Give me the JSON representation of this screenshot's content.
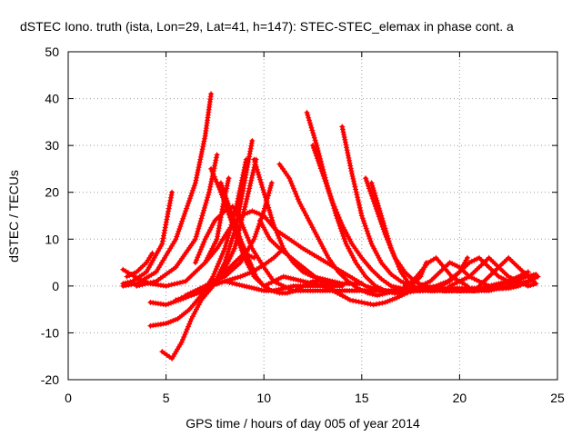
{
  "chart_data": {
    "type": "scatter",
    "title": "dSTEC Iono. truth (ista, Lon=29, Lat=41, h=147): STEC-STEC_elemax in phase cont. a",
    "xlabel": "GPS time / hours of day 005 of year 2014",
    "ylabel": "dSTEC  / TECUs",
    "xlim": [
      0,
      25
    ],
    "ylim": [
      -20,
      50
    ],
    "xticks": [
      0,
      5,
      10,
      15,
      20,
      25
    ],
    "yticks": [
      -20,
      -10,
      0,
      10,
      20,
      30,
      40,
      50
    ],
    "xtick_labels": [
      "0",
      "5",
      "10",
      "15",
      "20",
      "25"
    ],
    "ytick_labels": [
      "-20",
      "-10",
      "0",
      "10",
      "20",
      "30",
      "40",
      "50"
    ],
    "grid": true,
    "marker": "plus",
    "color": "#ff0000",
    "series": [
      {
        "x": [
          2.8,
          3.5,
          4.5,
          5.5,
          6.5,
          7.0,
          7.3
        ],
        "y": [
          0,
          0.5,
          3,
          10,
          22,
          32,
          41
        ]
      },
      {
        "x": [
          2.8,
          3.3,
          4.0,
          4.8,
          5.3
        ],
        "y": [
          0.5,
          1,
          3,
          9,
          20
        ]
      },
      {
        "x": [
          2.8,
          3.2,
          3.6,
          4.2,
          5.0,
          6.0,
          7.0,
          7.6,
          7.9,
          8.2
        ],
        "y": [
          3.5,
          2.5,
          1.5,
          0.5,
          0,
          1,
          5,
          10,
          17,
          23
        ]
      },
      {
        "x": [
          3.0,
          3.5,
          4.0,
          4.3
        ],
        "y": [
          2,
          3,
          5,
          7
        ]
      },
      {
        "x": [
          3.5,
          4.5,
          5.5,
          6.5,
          7.2,
          7.6
        ],
        "y": [
          0,
          1,
          4,
          10,
          20,
          28
        ]
      },
      {
        "x": [
          4.2,
          5.0,
          6.0,
          7.0,
          7.8,
          8.5,
          9.0,
          9.5
        ],
        "y": [
          -3.5,
          -4,
          -2.5,
          0,
          2,
          5,
          7,
          6
        ]
      },
      {
        "x": [
          4.2,
          5.0,
          5.6,
          6.2,
          6.8,
          7.4,
          8.0,
          8.6,
          9.1
        ],
        "y": [
          -8.5,
          -8,
          -7,
          -5,
          -2,
          2,
          8,
          17,
          27
        ]
      },
      {
        "x": [
          4.8,
          5.3,
          5.8,
          6.3,
          6.8,
          7.4,
          8.0,
          8.6,
          9.0,
          9.4
        ],
        "y": [
          -14,
          -15.5,
          -12,
          -7,
          -3,
          0,
          5,
          13,
          22,
          31
        ]
      },
      {
        "x": [
          5.5,
          6.3,
          7.0,
          7.8,
          8.5,
          9.1,
          9.6
        ],
        "y": [
          -3,
          -2,
          -1,
          2,
          8,
          18,
          27
        ]
      },
      {
        "x": [
          6.0,
          7.0,
          8.0,
          8.8,
          9.5,
          10.0,
          10.4
        ],
        "y": [
          -2,
          0,
          2,
          5,
          10,
          16,
          22
        ]
      },
      {
        "x": [
          5.8,
          6.5,
          7.3,
          8.0,
          8.8,
          9.4,
          10.0,
          10.5,
          11.0
        ],
        "y": [
          -2.5,
          -1.5,
          0,
          1,
          2,
          3,
          4.5,
          6,
          8
        ]
      },
      {
        "x": [
          6.5,
          7.0,
          7.5,
          8.0,
          8.4,
          8.7,
          9.0,
          9.4,
          10.0,
          10.5,
          11.0,
          11.5,
          12.0,
          12.5,
          13.0,
          13.5,
          14.0,
          14.5,
          15.0,
          15.5,
          16.0,
          16.5,
          17.0,
          17.5,
          18.0,
          18.5,
          19.0,
          19.5,
          20.0,
          20.5
        ],
        "y": [
          5,
          10,
          14,
          16,
          17,
          15,
          12,
          8,
          4,
          1,
          0,
          -1,
          -1,
          -1,
          -1,
          -1,
          -1,
          -1,
          -1,
          -1,
          -1,
          -1,
          -1,
          -1,
          -1,
          -1,
          -1,
          -1,
          -1,
          -0.5
        ]
      },
      {
        "x": [
          7.0,
          7.6,
          8.2,
          8.8,
          9.4,
          10.0,
          10.6,
          11.3,
          12.0,
          12.8,
          13.6,
          14.4,
          15.2,
          16.0,
          16.8,
          17.5,
          18.2,
          18.8,
          19.4,
          20.0,
          20.4
        ],
        "y": [
          5,
          8,
          12,
          15,
          16,
          15,
          12,
          10,
          8,
          6,
          4,
          2,
          0,
          -1,
          -1.5,
          -1,
          -0.5,
          0,
          1,
          3,
          6
        ]
      },
      {
        "x": [
          7.3,
          7.8,
          8.5,
          9.0,
          9.5,
          10.0,
          10.5,
          11.0,
          11.5,
          12.0,
          12.5,
          13.0,
          13.5,
          14.0
        ],
        "y": [
          25,
          20,
          12,
          6,
          2,
          0,
          1,
          2,
          1.5,
          1,
          0.5,
          0,
          -1,
          -2
        ]
      },
      {
        "x": [
          7.8,
          8.3,
          8.8,
          9.3,
          9.6,
          10.0,
          10.4,
          10.8,
          11.2,
          11.6,
          12.0,
          12.5,
          13.0,
          13.5,
          14.0
        ],
        "y": [
          22,
          16,
          10,
          5,
          2,
          0,
          -1,
          -1.5,
          -1.5,
          -1,
          0,
          1,
          1,
          0.5,
          0
        ]
      },
      {
        "x": [
          8.0,
          8.5,
          9.0,
          9.5,
          10.0,
          10.5,
          11.0,
          11.5,
          12.0,
          12.5,
          13.0,
          13.5,
          14.0
        ],
        "y": [
          1,
          0.5,
          0,
          -0.5,
          -1,
          -1,
          -0.5,
          0,
          0,
          0,
          0,
          0,
          0
        ]
      },
      {
        "x": [
          9.5,
          10.0,
          10.5,
          11.0,
          11.5,
          12.0,
          12.5,
          13.0,
          13.5,
          14.0,
          14.5,
          15.0
        ],
        "y": [
          27,
          20,
          13,
          8,
          5,
          3,
          2,
          1.5,
          1,
          0.5,
          0.5,
          0.5
        ]
      },
      {
        "x": [
          9.8,
          10.3,
          10.8,
          11.4,
          12.0,
          12.6,
          13.2,
          13.8,
          14.4,
          15.0,
          15.6,
          16.2,
          16.8,
          17.3
        ],
        "y": [
          14,
          10,
          8,
          6,
          4,
          2,
          0,
          -1.5,
          -3,
          -3.5,
          -4,
          -3.5,
          -2.5,
          -1.5
        ]
      },
      {
        "x": [
          10.8,
          11.3,
          11.8,
          12.3,
          12.8,
          13.3,
          13.8,
          14.3,
          14.8,
          15.3,
          15.8,
          16.3,
          16.8,
          17.3,
          17.8
        ],
        "y": [
          26,
          23,
          18,
          14,
          10,
          6,
          3,
          1,
          -0.5,
          -1.5,
          -2,
          -1.5,
          -1,
          -0.5,
          -0.5
        ]
      },
      {
        "x": [
          12.2,
          12.7,
          13.2,
          13.7,
          14.2,
          14.7,
          15.2,
          15.7,
          16.2,
          16.7,
          17.2,
          17.8,
          18.4,
          19.0,
          19.6,
          20.2,
          20.8,
          21.5,
          22.2,
          22.8,
          23.4,
          23.9
        ],
        "y": [
          37,
          30,
          22,
          15,
          9,
          5,
          2,
          0,
          -1,
          -1.5,
          -1.5,
          -1,
          -1,
          -1,
          -1,
          -1,
          -1,
          -0.5,
          -0.5,
          0,
          0.5,
          2
        ]
      },
      {
        "x": [
          12.5,
          13.0,
          13.5,
          14.0,
          14.5,
          15.0,
          15.5,
          16.0,
          16.5,
          17.0,
          17.5,
          18.0,
          18.5,
          19.0,
          19.5,
          20.0,
          20.5,
          21.0,
          21.5,
          22.0,
          22.5,
          23.0,
          23.5
        ],
        "y": [
          30,
          24,
          18,
          13,
          9,
          6,
          3.5,
          1.5,
          0,
          -0.5,
          -1,
          -1,
          -0.5,
          -0.5,
          -0.5,
          -0.5,
          -0.5,
          -0.5,
          0,
          0.5,
          1,
          2,
          3
        ]
      },
      {
        "x": [
          14.0,
          14.5,
          15.0,
          15.5,
          16.0,
          16.5,
          17.0,
          17.5,
          18.0,
          18.5,
          19.0,
          19.5,
          20.0,
          20.5,
          21.0,
          21.5,
          22.0,
          22.5,
          23.0,
          23.5,
          23.9
        ],
        "y": [
          34,
          24,
          15,
          9,
          5,
          2.5,
          1,
          0,
          -0.5,
          -1,
          -1,
          -1,
          -1,
          -1,
          -1,
          -1,
          -0.5,
          0,
          0.5,
          1,
          2
        ]
      },
      {
        "x": [
          15.2,
          15.7,
          16.2,
          16.7,
          17.2,
          17.7,
          18.2,
          18.7,
          19.2,
          19.7,
          20.2,
          20.7,
          21.2,
          21.7,
          22.2,
          22.8,
          23.4,
          23.9
        ],
        "y": [
          23,
          17,
          11,
          6,
          3,
          1,
          0,
          -0.5,
          -1,
          -1,
          -1,
          -1,
          -0.5,
          0,
          0.5,
          1,
          2,
          2.5
        ]
      },
      {
        "x": [
          15.5,
          16.0,
          16.5,
          17.0,
          17.5,
          18.0,
          18.3
        ],
        "y": [
          22,
          15,
          8,
          3,
          0,
          2,
          5
        ]
      },
      {
        "x": [
          16.5,
          17.0,
          17.5,
          18.0,
          18.5,
          19.0,
          19.5,
          20.0,
          20.5,
          21.0,
          21.5,
          22.0,
          22.5,
          23.0,
          23.5,
          24.0
        ],
        "y": [
          0,
          -1,
          -1,
          0,
          1,
          3,
          5,
          4,
          2,
          1,
          0,
          -0.5,
          -0.5,
          0,
          1,
          2
        ]
      },
      {
        "x": [
          17.2,
          17.6,
          18.0,
          18.4,
          18.8,
          19.2,
          19.6,
          20.0,
          20.4
        ],
        "y": [
          0,
          1,
          3,
          5,
          6,
          4,
          2,
          1,
          0
        ]
      },
      {
        "x": [
          18.5,
          19.0,
          19.5,
          20.0,
          20.5,
          21.0,
          21.5,
          22.0,
          22.5,
          23.0,
          23.5,
          24.0
        ],
        "y": [
          -0.5,
          0,
          1,
          3,
          5,
          6,
          4,
          2,
          1,
          0.5,
          1,
          2
        ]
      },
      {
        "x": [
          19.5,
          20.0,
          20.5,
          21.0,
          21.5,
          22.0,
          22.5,
          23.0,
          23.5,
          23.9
        ],
        "y": [
          0,
          1,
          2,
          4,
          6,
          4,
          2,
          1,
          0,
          0.5
        ]
      },
      {
        "x": [
          21.0,
          21.5,
          22.0,
          22.5,
          23.0,
          23.5,
          23.9
        ],
        "y": [
          0,
          2,
          4,
          6,
          4,
          2,
          0.5
        ]
      }
    ]
  }
}
